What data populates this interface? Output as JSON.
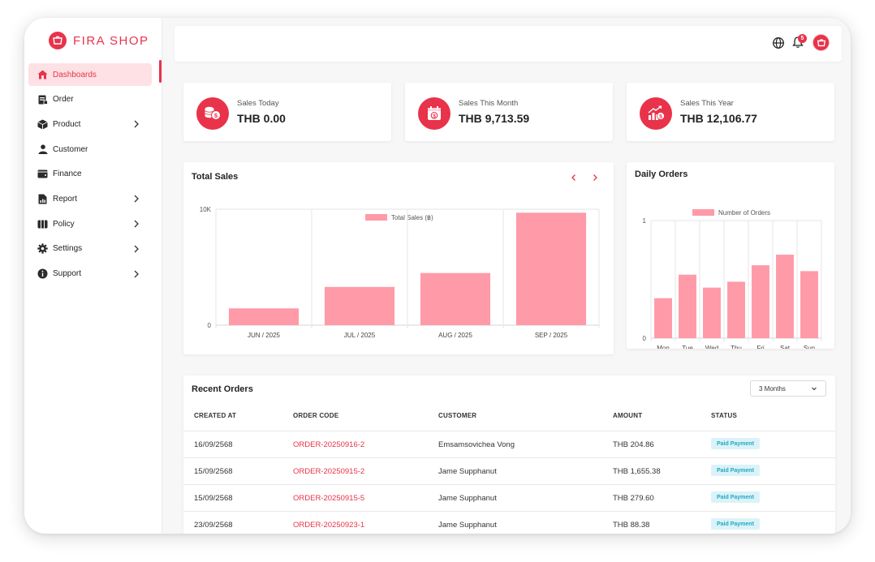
{
  "brand": {
    "name": "FIRA SHOP",
    "accent": "#e8334a",
    "bar_color": "#ff9aa8"
  },
  "sidebar": {
    "items": [
      {
        "label": "Dashboards",
        "icon": "house-icon",
        "active": true,
        "has_submenu": false
      },
      {
        "label": "Order",
        "icon": "order-icon",
        "active": false,
        "has_submenu": false
      },
      {
        "label": "Product",
        "icon": "box-icon",
        "active": false,
        "has_submenu": true
      },
      {
        "label": "Customer",
        "icon": "user-icon",
        "active": false,
        "has_submenu": false
      },
      {
        "label": "Finance",
        "icon": "wallet-icon",
        "active": false,
        "has_submenu": false
      },
      {
        "label": "Report",
        "icon": "report-icon",
        "active": false,
        "has_submenu": true
      },
      {
        "label": "Policy",
        "icon": "policy-icon",
        "active": false,
        "has_submenu": true
      },
      {
        "label": "Settings",
        "icon": "gear-icon",
        "active": false,
        "has_submenu": true
      },
      {
        "label": "Support",
        "icon": "info-icon",
        "active": false,
        "has_submenu": true
      }
    ]
  },
  "header": {
    "notification_count": "5",
    "icons": [
      "globe-icon",
      "bell-icon",
      "avatar"
    ]
  },
  "stats": [
    {
      "label": "Sales Today",
      "value": "THB 0.00",
      "icon": "coins-icon"
    },
    {
      "label": "Sales This Month",
      "value": "THB 9,713.59",
      "icon": "calendar-money-icon"
    },
    {
      "label": "Sales This Year",
      "value": "THB 12,106.77",
      "icon": "growth-chart-icon"
    }
  ],
  "total_sales": {
    "title": "Total Sales"
  },
  "daily_orders": {
    "title": "Daily Orders"
  },
  "chart_data": [
    {
      "type": "bar",
      "title": "Total Sales",
      "categories": [
        "JUN / 2025",
        "JUL / 2025",
        "AUG / 2025",
        "SEP / 2025"
      ],
      "series": [
        {
          "name": "Total Sales (฿)",
          "values": [
            1450,
            3300,
            4500,
            9700
          ]
        }
      ],
      "ylim": [
        0,
        10000
      ],
      "y_ticks": [
        "0",
        "10K"
      ],
      "legend": "top",
      "grid": true
    },
    {
      "type": "bar",
      "title": "Daily Orders",
      "categories": [
        "Mon",
        "Tue",
        "Wed",
        "Thu",
        "Fri",
        "Sat",
        "Sun"
      ],
      "series": [
        {
          "name": "Number of Orders",
          "values": [
            0.34,
            0.54,
            0.43,
            0.48,
            0.62,
            0.71,
            0.57
          ]
        }
      ],
      "ylim": [
        0,
        1
      ],
      "y_ticks": [
        "0",
        "1"
      ],
      "legend": "top",
      "grid": true
    }
  ],
  "recent_orders": {
    "title": "Recent Orders",
    "filter_value": "3 Months",
    "columns": [
      "CREATED AT",
      "ORDER CODE",
      "CUSTOMER",
      "AMOUNT",
      "STATUS"
    ],
    "rows": [
      {
        "created_at": "16/09/2568",
        "order_code": "ORDER-20250916-2",
        "customer": "Emsamsovichea Vong",
        "amount": "THB 204.86",
        "status": "Paid Payment"
      },
      {
        "created_at": "15/09/2568",
        "order_code": "ORDER-20250915-2",
        "customer": "Jame Supphanut",
        "amount": "THB 1,655.38",
        "status": "Paid Payment"
      },
      {
        "created_at": "15/09/2568",
        "order_code": "ORDER-20250915-5",
        "customer": "Jame Supphanut",
        "amount": "THB 279.60",
        "status": "Paid Payment"
      },
      {
        "created_at": "23/09/2568",
        "order_code": "ORDER-20250923-1",
        "customer": "Jame Supphanut",
        "amount": "THB 88.38",
        "status": "Paid Payment"
      }
    ]
  }
}
